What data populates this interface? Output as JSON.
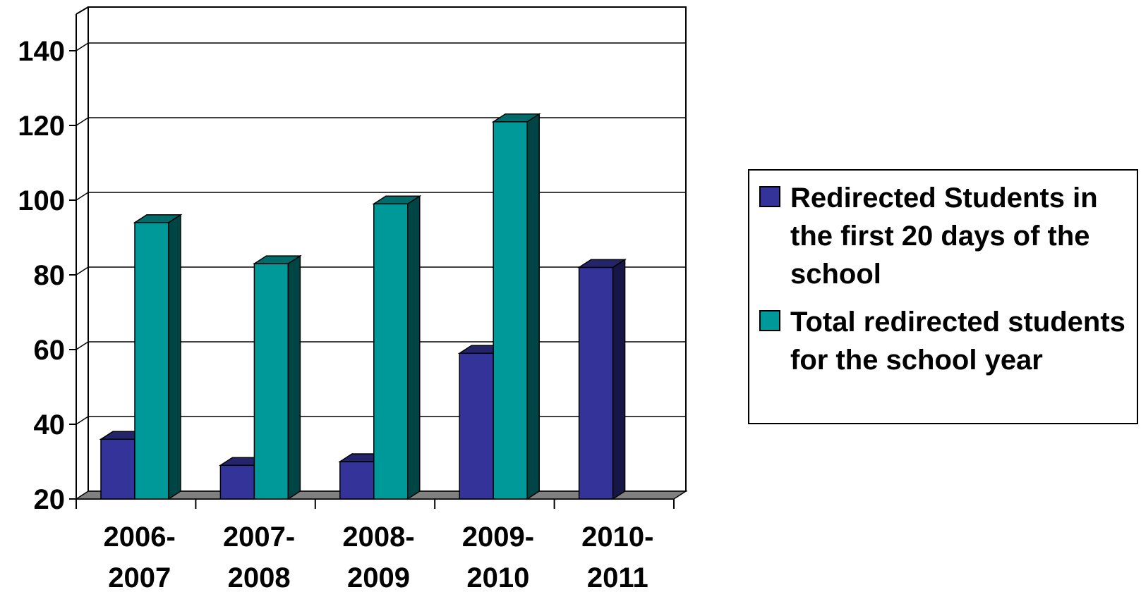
{
  "chart_data": {
    "type": "bar",
    "title": "",
    "xlabel": "",
    "ylabel": "",
    "categories": [
      [
        "2006-",
        "2007"
      ],
      [
        "2007-",
        "2008"
      ],
      [
        "2008-",
        "2009"
      ],
      [
        "2009-",
        "2010"
      ],
      [
        "2010-",
        "2011"
      ]
    ],
    "series": [
      {
        "name": "Redirected Students in the first 20 days of the school",
        "color": "#333399",
        "values": [
          36,
          29,
          30,
          59,
          82
        ]
      },
      {
        "name": "Total redirected students for the school year",
        "color": "#009999",
        "values": [
          94,
          83,
          99,
          121,
          null
        ]
      }
    ],
    "ylim": [
      20,
      150
    ],
    "yticks": [
      20,
      40,
      60,
      80,
      100,
      120,
      140
    ],
    "grid": true,
    "legend_position": "right",
    "style": "3d-column"
  }
}
